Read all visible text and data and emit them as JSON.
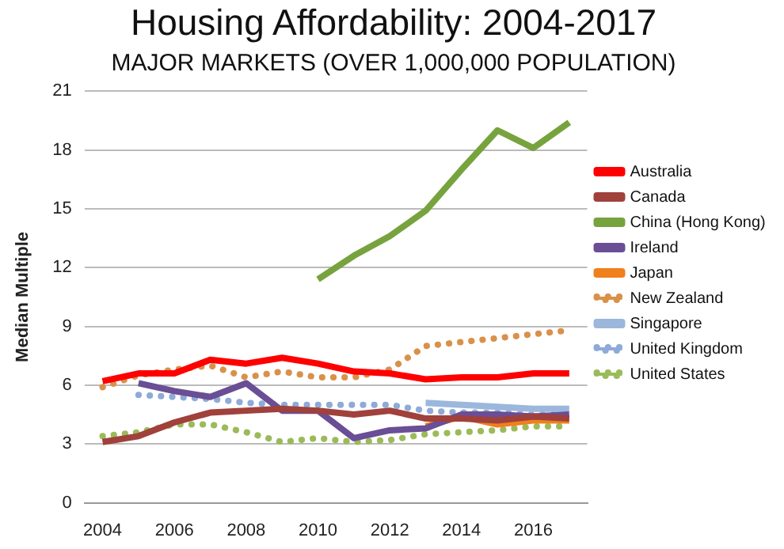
{
  "chart_data": {
    "type": "line",
    "title": "Housing Affordability: 2004-2017",
    "subtitle": "MAJOR MARKETS (OVER 1,000,000 POPULATION)",
    "ylabel": "Median Multiple",
    "categories": [
      "2004",
      null,
      "2006",
      null,
      "2008",
      null,
      "2010",
      null,
      "2012",
      null,
      "2014",
      null,
      "2016",
      null
    ],
    "series": [
      {
        "name": "Australia",
        "color": "#ff0000",
        "line_style": "solid",
        "values": [
          6.2,
          6.6,
          6.6,
          7.3,
          7.1,
          7.4,
          7.1,
          6.7,
          6.6,
          6.3,
          6.4,
          6.4,
          6.6,
          6.6
        ]
      },
      {
        "name": "Canada",
        "color": "#a0413c",
        "line_style": "solid",
        "values": [
          3.1,
          3.4,
          4.1,
          4.6,
          4.7,
          4.8,
          4.7,
          4.5,
          4.7,
          4.3,
          4.3,
          4.2,
          4.4,
          4.3
        ]
      },
      {
        "name": "China (Hong Kong)",
        "color": "#77a33e",
        "line_style": "solid",
        "values": [
          null,
          null,
          null,
          null,
          null,
          null,
          11.4,
          12.6,
          13.6,
          14.9,
          17.0,
          19.0,
          18.1,
          19.4
        ]
      },
      {
        "name": "Ireland",
        "color": "#6a4e96",
        "line_style": "solid",
        "values": [
          null,
          6.1,
          5.7,
          5.4,
          6.1,
          4.7,
          4.7,
          3.3,
          3.7,
          3.8,
          4.5,
          4.5,
          4.4,
          4.5
        ]
      },
      {
        "name": "Japan",
        "color": "#f07f1e",
        "line_style": "solid",
        "values": [
          null,
          null,
          null,
          null,
          null,
          null,
          null,
          null,
          null,
          3.9,
          4.4,
          4.0,
          4.2,
          4.2
        ]
      },
      {
        "name": "New Zealand",
        "color": "#d9914a",
        "line_style": "dotted",
        "values": [
          5.9,
          6.5,
          6.8,
          7.0,
          6.4,
          6.7,
          6.4,
          6.4,
          6.8,
          8.0,
          8.2,
          8.4,
          8.6,
          8.8
        ]
      },
      {
        "name": "Singapore",
        "color": "#9bb7dc",
        "line_style": "solid",
        "values": [
          null,
          null,
          null,
          null,
          null,
          null,
          null,
          null,
          null,
          5.1,
          5.0,
          4.9,
          4.8,
          4.8
        ]
      },
      {
        "name": "United Kingdom",
        "color": "#8eaad8",
        "line_style": "dotted",
        "values": [
          null,
          5.5,
          5.4,
          5.3,
          5.1,
          5.0,
          5.0,
          5.0,
          5.0,
          4.7,
          4.6,
          4.6,
          4.5,
          4.5
        ]
      },
      {
        "name": "United States",
        "color": "#9bbb59",
        "line_style": "dotted",
        "values": [
          3.4,
          3.6,
          4.0,
          4.0,
          3.6,
          3.1,
          3.3,
          3.1,
          3.2,
          3.5,
          3.6,
          3.7,
          3.9,
          3.9
        ]
      }
    ],
    "ylim": [
      0,
      21
    ],
    "yticks": [
      0,
      3,
      6,
      9,
      12,
      15,
      18,
      21
    ],
    "grid": "y",
    "legend": "right",
    "marker": "none"
  }
}
